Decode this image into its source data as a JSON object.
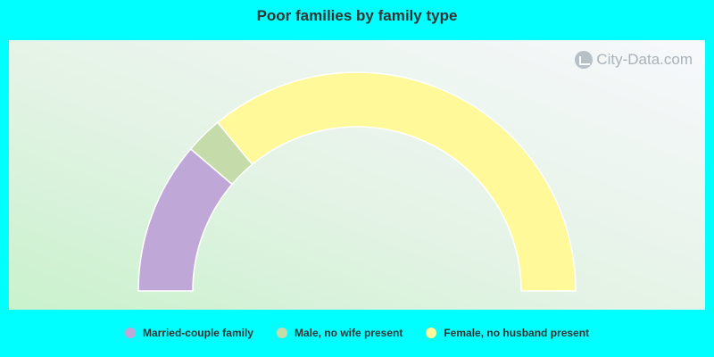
{
  "chart_data": {
    "type": "pie",
    "style": "half-donut",
    "title": "Poor families by family type",
    "categories": [
      "Married-couple family",
      "Male, no wife present",
      "Female, no husband present"
    ],
    "values": [
      22.5,
      5.5,
      72.0
    ],
    "colors": [
      "#bfa8d8",
      "#c5dbaa",
      "#fff99a"
    ],
    "legend_position": "bottom"
  },
  "watermark": "City-Data.com"
}
